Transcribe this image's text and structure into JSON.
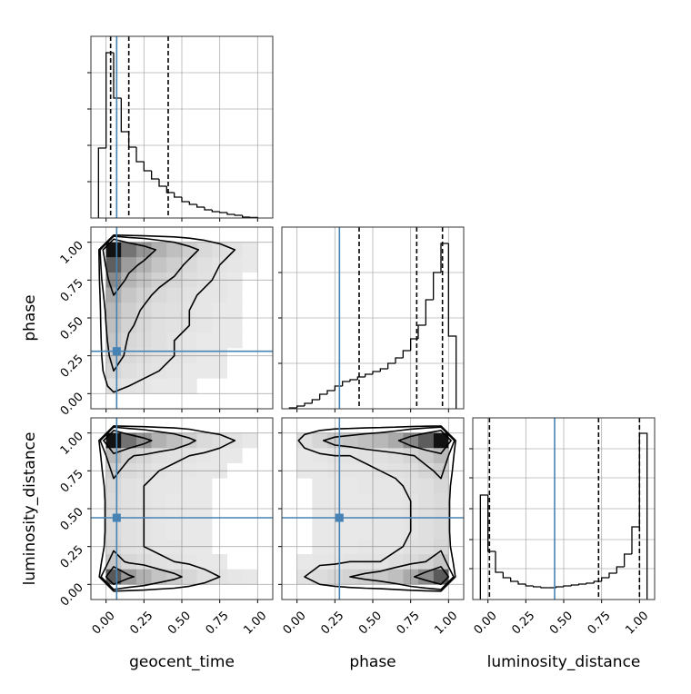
{
  "chart_data": {
    "type": "corner",
    "labels": [
      "geocent_time",
      "phase",
      "luminosity_distance"
    ],
    "lim": [
      -0.1,
      1.1
    ],
    "ticks": [
      {
        "value": 0,
        "label": "0.00"
      },
      {
        "value": 0.25,
        "label": "0.25"
      },
      {
        "value": 0.5,
        "label": "0.50"
      },
      {
        "value": 0.75,
        "label": "0.75"
      },
      {
        "value": 1,
        "label": "1.00"
      }
    ],
    "grid": true,
    "truths": [
      0.07,
      0.28,
      0.44
    ],
    "truth_color": "#4682b4",
    "histograms": [
      {
        "bins": [
          -0.05,
          0,
          0.05,
          0.1,
          0.15,
          0.2,
          0.25,
          0.3,
          0.35,
          0.4,
          0.45,
          0.5,
          0.55,
          0.6,
          0.65,
          0.7,
          0.75,
          0.8,
          0.85,
          0.9,
          0.95,
          1.0
        ],
        "values": [
          0.385,
          0.91,
          0.66,
          0.475,
          0.39,
          0.31,
          0.26,
          0.215,
          0.175,
          0.14,
          0.115,
          0.09,
          0.075,
          0.06,
          0.045,
          0.035,
          0.03,
          0.02,
          0.015,
          0.005,
          0.003
        ],
        "ylim": [
          0,
          1
        ],
        "yticks": [
          0.2,
          0.4,
          0.6,
          0.8
        ],
        "quantiles": [
          0.03,
          0.15,
          0.41
        ]
      },
      {
        "bins": [
          -0.05,
          0,
          0.05,
          0.1,
          0.15,
          0.2,
          0.25,
          0.3,
          0.35,
          0.4,
          0.45,
          0.5,
          0.55,
          0.6,
          0.65,
          0.7,
          0.75,
          0.8,
          0.85,
          0.9,
          0.95,
          1.0,
          1.05
        ],
        "values": [
          0.005,
          0.015,
          0.03,
          0.05,
          0.08,
          0.1,
          0.125,
          0.15,
          0.16,
          0.175,
          0.19,
          0.205,
          0.22,
          0.25,
          0.28,
          0.32,
          0.385,
          0.46,
          0.6,
          0.75,
          0.91,
          0.4
        ],
        "ylim": [
          0,
          1
        ],
        "yticks": [
          0.25,
          0.5,
          0.75
        ],
        "quantiles": [
          0.41,
          0.79,
          0.96
        ]
      },
      {
        "bins": [
          -0.05,
          0,
          0.05,
          0.1,
          0.15,
          0.2,
          0.25,
          0.3,
          0.35,
          0.4,
          0.45,
          0.5,
          0.55,
          0.6,
          0.65,
          0.7,
          0.75,
          0.8,
          0.85,
          0.9,
          0.95,
          1.0,
          1.05
        ],
        "values": [
          0.575,
          0.265,
          0.15,
          0.12,
          0.1,
          0.085,
          0.075,
          0.07,
          0.065,
          0.065,
          0.07,
          0.075,
          0.08,
          0.085,
          0.09,
          0.1,
          0.12,
          0.145,
          0.18,
          0.25,
          0.4,
          0.915
        ],
        "ylim": [
          0,
          1
        ],
        "yticks": [
          0.17,
          0.33,
          0.5,
          0.67,
          0.83
        ],
        "quantiles": [
          0.01,
          0.73,
          1.0
        ]
      }
    ],
    "densities": [
      {
        "x_edges": [
          0,
          0.1,
          0.2,
          0.3,
          0.4,
          0.5,
          0.6,
          0.7,
          0.8,
          0.9,
          1.0
        ],
        "y_edges": [
          0,
          0.1,
          0.2,
          0.3,
          0.4,
          0.5,
          0.6,
          0.7,
          0.8,
          0.9,
          1.0
        ],
        "z": [
          [
            0.05,
            0.03,
            0.02,
            0.01,
            0.01,
            0.01,
            0,
            0,
            0,
            0
          ],
          [
            0.1,
            0.06,
            0.04,
            0.03,
            0.02,
            0.01,
            0.01,
            0.01,
            0,
            0
          ],
          [
            0.14,
            0.08,
            0.06,
            0.04,
            0.03,
            0.02,
            0.01,
            0.01,
            0,
            0
          ],
          [
            0.17,
            0.09,
            0.07,
            0.05,
            0.03,
            0.02,
            0.01,
            0.01,
            0.01,
            0
          ],
          [
            0.2,
            0.11,
            0.08,
            0.05,
            0.04,
            0.03,
            0.02,
            0.01,
            0.01,
            0
          ],
          [
            0.23,
            0.13,
            0.09,
            0.06,
            0.05,
            0.03,
            0.02,
            0.01,
            0.01,
            0
          ],
          [
            0.3,
            0.17,
            0.12,
            0.08,
            0.06,
            0.04,
            0.02,
            0.02,
            0.01,
            0
          ],
          [
            0.45,
            0.25,
            0.18,
            0.12,
            0.09,
            0.06,
            0.04,
            0.02,
            0.01,
            0
          ],
          [
            0.65,
            0.36,
            0.26,
            0.18,
            0.13,
            0.08,
            0.05,
            0.03,
            0.02,
            0.01
          ],
          [
            1.0,
            0.55,
            0.4,
            0.27,
            0.2,
            0.13,
            0.08,
            0.05,
            0.03,
            0.01
          ]
        ],
        "levels": [
          0.03,
          0.1,
          0.3
        ]
      },
      {
        "x_edges": [
          0,
          0.1,
          0.2,
          0.3,
          0.4,
          0.5,
          0.6,
          0.7,
          0.8,
          0.9,
          1.0
        ],
        "y_edges": [
          0,
          0.1,
          0.2,
          0.3,
          0.4,
          0.5,
          0.6,
          0.7,
          0.8,
          0.9,
          1.0
        ],
        "z": [
          [
            0.6,
            0.33,
            0.24,
            0.16,
            0.12,
            0.08,
            0.05,
            0.03,
            0.02,
            0.01
          ],
          [
            0.15,
            0.08,
            0.06,
            0.04,
            0.03,
            0.02,
            0.01,
            0.01,
            0,
            0
          ],
          [
            0.08,
            0.04,
            0.03,
            0.02,
            0.02,
            0.01,
            0.01,
            0,
            0,
            0
          ],
          [
            0.07,
            0.04,
            0.03,
            0.02,
            0.01,
            0.01,
            0.01,
            0,
            0,
            0
          ],
          [
            0.07,
            0.04,
            0.03,
            0.02,
            0.01,
            0.01,
            0.01,
            0,
            0,
            0
          ],
          [
            0.07,
            0.04,
            0.03,
            0.02,
            0.01,
            0.01,
            0.01,
            0,
            0,
            0
          ],
          [
            0.08,
            0.04,
            0.03,
            0.02,
            0.02,
            0.01,
            0.01,
            0,
            0,
            0
          ],
          [
            0.12,
            0.07,
            0.05,
            0.03,
            0.02,
            0.02,
            0.01,
            0.01,
            0,
            0
          ],
          [
            0.2,
            0.11,
            0.08,
            0.05,
            0.04,
            0.03,
            0.02,
            0.01,
            0.01,
            0
          ],
          [
            0.9,
            0.5,
            0.36,
            0.24,
            0.18,
            0.12,
            0.07,
            0.05,
            0.03,
            0.01
          ]
        ],
        "levels": [
          0.03,
          0.1,
          0.3
        ]
      },
      {
        "x_edges": [
          0,
          0.1,
          0.2,
          0.3,
          0.4,
          0.5,
          0.6,
          0.7,
          0.8,
          0.9,
          1.0
        ],
        "y_edges": [
          0,
          0.1,
          0.2,
          0.3,
          0.4,
          0.5,
          0.6,
          0.7,
          0.8,
          0.9,
          1.0
        ],
        "z": [
          [
            0.03,
            0.06,
            0.08,
            0.1,
            0.12,
            0.14,
            0.18,
            0.27,
            0.39,
            0.6
          ],
          [
            0.01,
            0.02,
            0.02,
            0.03,
            0.03,
            0.03,
            0.05,
            0.07,
            0.1,
            0.15
          ],
          [
            0,
            0.01,
            0.01,
            0.01,
            0.02,
            0.02,
            0.02,
            0.04,
            0.05,
            0.08
          ],
          [
            0,
            0.01,
            0.01,
            0.01,
            0.01,
            0.02,
            0.02,
            0.03,
            0.05,
            0.07
          ],
          [
            0,
            0.01,
            0.01,
            0.01,
            0.01,
            0.02,
            0.02,
            0.03,
            0.05,
            0.07
          ],
          [
            0,
            0.01,
            0.01,
            0.01,
            0.01,
            0.02,
            0.02,
            0.03,
            0.05,
            0.07
          ],
          [
            0,
            0.01,
            0.01,
            0.01,
            0.02,
            0.02,
            0.02,
            0.04,
            0.05,
            0.08
          ],
          [
            0.01,
            0.01,
            0.02,
            0.02,
            0.02,
            0.03,
            0.04,
            0.05,
            0.08,
            0.12
          ],
          [
            0.01,
            0.02,
            0.03,
            0.03,
            0.04,
            0.05,
            0.06,
            0.09,
            0.13,
            0.2
          ],
          [
            0.05,
            0.09,
            0.13,
            0.15,
            0.18,
            0.21,
            0.27,
            0.41,
            0.59,
            0.9
          ]
        ],
        "levels": [
          0.03,
          0.1,
          0.3
        ]
      }
    ]
  }
}
